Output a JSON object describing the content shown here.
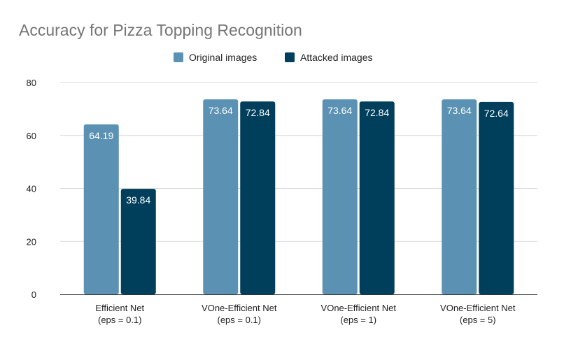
{
  "chart_data": {
    "type": "bar",
    "title": "Accuracy for Pizza Topping Recognition",
    "xlabel": "",
    "ylabel": "",
    "ylim": [
      0,
      80
    ],
    "yticks": [
      0,
      20,
      40,
      60,
      80
    ],
    "grid": true,
    "legend_position": "top-center",
    "categories": [
      [
        "Efficient Net",
        "(eps = 0.1)"
      ],
      [
        "VOne-Efficient Net",
        "(eps = 0.1)"
      ],
      [
        "VOne-Efficient Net",
        "(eps = 1)"
      ],
      [
        "VOne-Efficient Net",
        "(eps = 5)"
      ]
    ],
    "series": [
      {
        "name": "Original images",
        "color": "#5b91b2",
        "values": [
          64.19,
          73.64,
          73.64,
          73.64
        ],
        "labels": [
          "64.19",
          "73.64",
          "73.64",
          "73.64"
        ]
      },
      {
        "name": "Attacked images",
        "color": "#003f5c",
        "values": [
          39.84,
          72.84,
          72.84,
          72.64
        ],
        "labels": [
          "39.84",
          "72.84",
          "72.84",
          "72.64"
        ]
      }
    ]
  }
}
